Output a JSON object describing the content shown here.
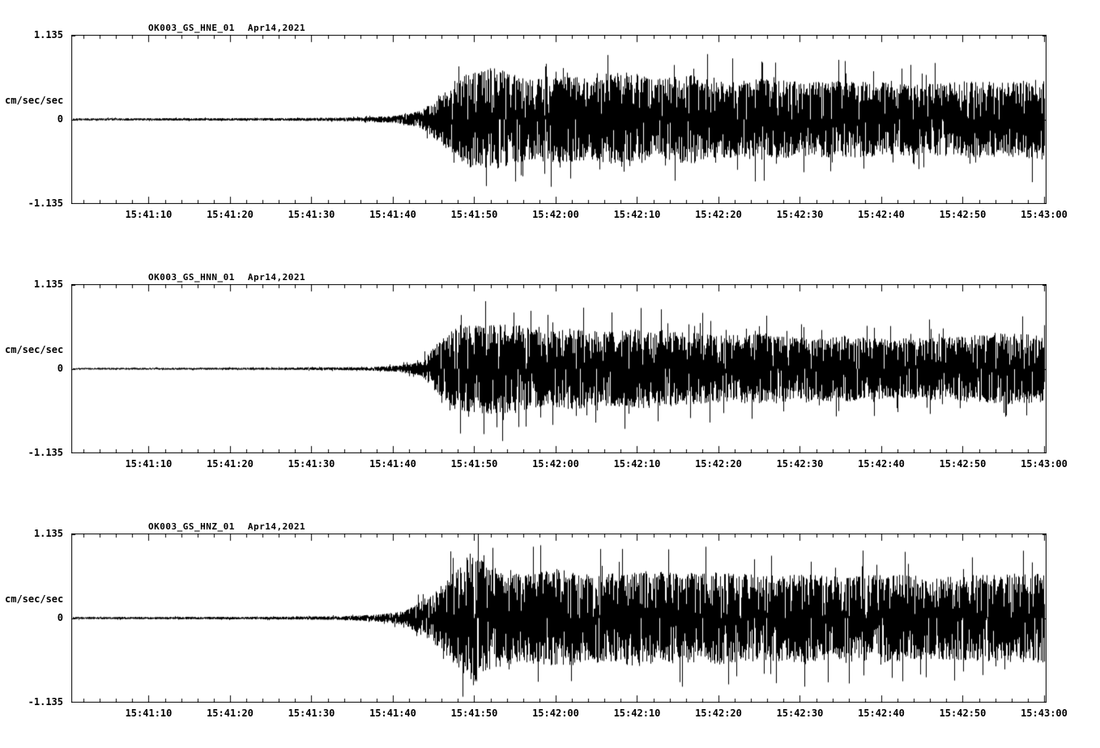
{
  "page": {
    "background": "#ffffff",
    "trace_color": "#000000"
  },
  "chart_data": [
    {
      "type": "line",
      "title": "OK003_GS_HNE_01",
      "date": "Apr14,2021",
      "ylabel": "cm/sec/sec",
      "ytick_labels": [
        "1.135",
        "0",
        "-1.135"
      ],
      "ylim": [
        -1.135,
        1.135
      ],
      "duration_seconds": 119.8,
      "first_major_tick_offset": 9.5,
      "tick_interval_major": 10,
      "tick_interval_minor": 2,
      "xtick_labels": [
        "15:41:10",
        "15:41:20",
        "15:41:30",
        "15:41:40",
        "15:41:50",
        "15:42:00",
        "15:42:10",
        "15:42:20",
        "15:42:30",
        "15:42:40",
        "15:42:50",
        "15:43:00"
      ],
      "envelope": [
        [
          0,
          0.015
        ],
        [
          25,
          0.018
        ],
        [
          35,
          0.025
        ],
        [
          40,
          0.05
        ],
        [
          43,
          0.12
        ],
        [
          45,
          0.3
        ],
        [
          47,
          0.5
        ],
        [
          49,
          0.65
        ],
        [
          52,
          0.7
        ],
        [
          56,
          0.55
        ],
        [
          60,
          0.6
        ],
        [
          64,
          0.55
        ],
        [
          68,
          0.65
        ],
        [
          72,
          0.55
        ],
        [
          76,
          0.6
        ],
        [
          80,
          0.52
        ],
        [
          85,
          0.55
        ],
        [
          90,
          0.5
        ],
        [
          95,
          0.52
        ],
        [
          100,
          0.5
        ],
        [
          105,
          0.48
        ],
        [
          110,
          0.52
        ],
        [
          115,
          0.5
        ],
        [
          119.8,
          0.55
        ]
      ]
    },
    {
      "type": "line",
      "title": "OK003_GS_HNN_01",
      "date": "Apr14,2021",
      "ylabel": "cm/sec/sec",
      "ytick_labels": [
        "1.135",
        "0",
        "-1.135"
      ],
      "ylim": [
        -1.135,
        1.135
      ],
      "duration_seconds": 119.8,
      "first_major_tick_offset": 9.5,
      "tick_interval_major": 10,
      "tick_interval_minor": 2,
      "xtick_labels": [
        "15:41:10",
        "15:41:20",
        "15:41:30",
        "15:41:40",
        "15:41:50",
        "15:42:00",
        "15:42:10",
        "15:42:20",
        "15:42:30",
        "15:42:40",
        "15:42:50",
        "15:43:00"
      ],
      "envelope": [
        [
          0,
          0.012
        ],
        [
          25,
          0.015
        ],
        [
          35,
          0.022
        ],
        [
          40,
          0.04
        ],
        [
          43,
          0.1
        ],
        [
          45,
          0.35
        ],
        [
          47,
          0.55
        ],
        [
          50,
          0.6
        ],
        [
          54,
          0.62
        ],
        [
          58,
          0.5
        ],
        [
          62,
          0.55
        ],
        [
          66,
          0.5
        ],
        [
          70,
          0.55
        ],
        [
          75,
          0.5
        ],
        [
          80,
          0.45
        ],
        [
          85,
          0.48
        ],
        [
          90,
          0.42
        ],
        [
          95,
          0.45
        ],
        [
          100,
          0.4
        ],
        [
          105,
          0.42
        ],
        [
          110,
          0.45
        ],
        [
          115,
          0.48
        ],
        [
          119.8,
          0.45
        ]
      ]
    },
    {
      "type": "line",
      "title": "OK003_GS_HNZ_01",
      "date": "Apr14,2021",
      "ylabel": "cm/sec/sec",
      "ytick_labels": [
        "1.135",
        "0",
        "-1.135"
      ],
      "ylim": [
        -1.135,
        1.135
      ],
      "duration_seconds": 119.8,
      "first_major_tick_offset": 9.5,
      "tick_interval_major": 10,
      "tick_interval_minor": 2,
      "xtick_labels": [
        "15:41:10",
        "15:41:20",
        "15:41:30",
        "15:41:40",
        "15:41:50",
        "15:42:00",
        "15:42:10",
        "15:42:20",
        "15:42:30",
        "15:42:40",
        "15:42:50",
        "15:43:00"
      ],
      "envelope": [
        [
          0,
          0.015
        ],
        [
          25,
          0.018
        ],
        [
          33,
          0.025
        ],
        [
          38,
          0.05
        ],
        [
          41,
          0.1
        ],
        [
          44,
          0.3
        ],
        [
          46,
          0.5
        ],
        [
          48,
          0.75
        ],
        [
          49,
          0.95
        ],
        [
          51,
          0.7
        ],
        [
          55,
          0.6
        ],
        [
          60,
          0.65
        ],
        [
          65,
          0.6
        ],
        [
          70,
          0.65
        ],
        [
          75,
          0.6
        ],
        [
          80,
          0.62
        ],
        [
          85,
          0.58
        ],
        [
          90,
          0.6
        ],
        [
          95,
          0.55
        ],
        [
          100,
          0.6
        ],
        [
          105,
          0.55
        ],
        [
          110,
          0.58
        ],
        [
          115,
          0.6
        ],
        [
          119.8,
          0.6
        ]
      ]
    }
  ]
}
